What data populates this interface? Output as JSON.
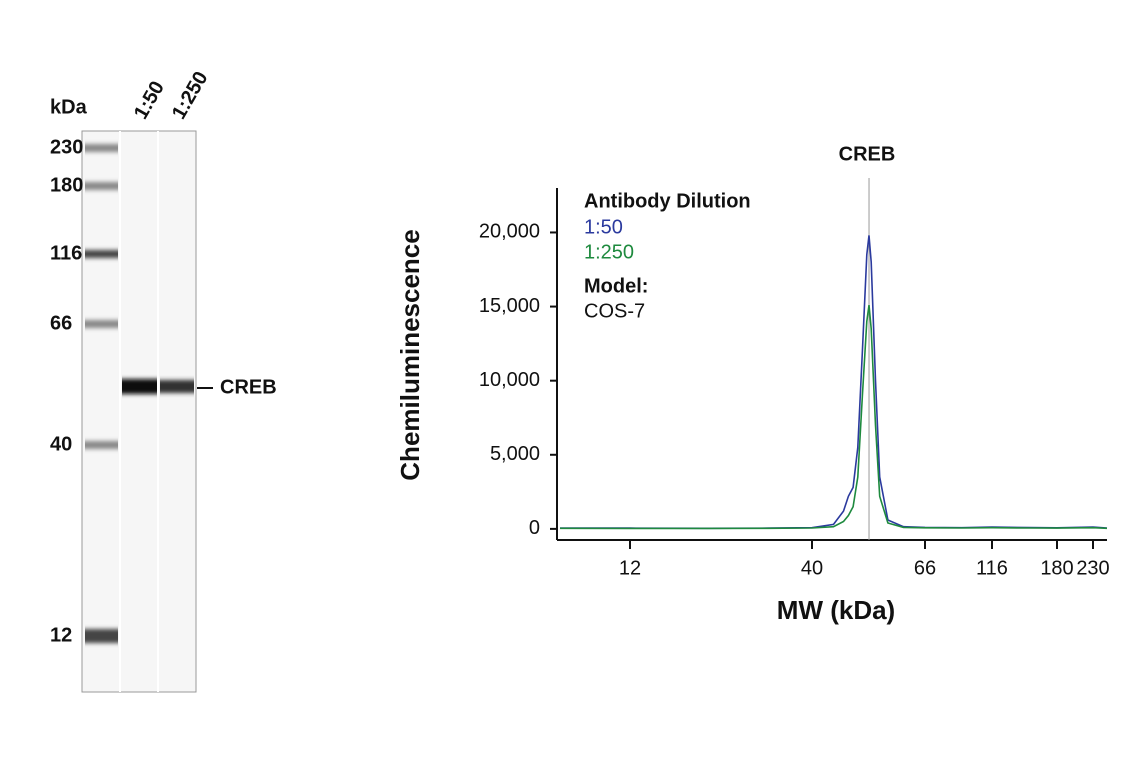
{
  "gel": {
    "unit": "kDa",
    "markers": [
      230,
      180,
      116,
      66,
      40,
      12
    ],
    "lanes": [
      "1:50",
      "1:250"
    ],
    "band": "CREB"
  },
  "chart_data": {
    "type": "line",
    "title": "CREB",
    "annotation_x": 51.5,
    "x_label": "MW (kDa)",
    "y_label": "Chemiluminescence",
    "legend_title": "Antibody Dilution",
    "model_label": "Model:",
    "model": "COS-7",
    "xlim": [
      7.5,
      253
    ],
    "xticks": [
      12,
      40,
      66,
      116,
      180,
      230
    ],
    "ylim": [
      -750,
      23000
    ],
    "yticks": [
      0,
      {
        "value": 5000,
        "label": "5,000"
      },
      {
        "value": 10000,
        "label": "10,000"
      },
      {
        "value": 15000,
        "label": "15,000"
      },
      {
        "value": 20000,
        "label": "20,000"
      }
    ],
    "x": [
      7.5,
      12,
      20,
      30,
      40,
      44,
      46,
      47,
      48,
      49,
      50,
      51,
      51.5,
      52,
      53,
      54,
      56,
      60,
      66,
      90,
      116,
      150,
      180,
      230,
      253
    ],
    "series": [
      {
        "name": "1:50",
        "color": "#2b3a9e",
        "values": [
          60,
          50,
          40,
          50,
          80,
          300,
          1200,
          2200,
          2800,
          5500,
          12000,
          18500,
          19800,
          18000,
          10000,
          3500,
          600,
          150,
          100,
          80,
          120,
          90,
          70,
          120,
          60
        ]
      },
      {
        "name": "1:250",
        "color": "#1e8a3e",
        "values": [
          40,
          30,
          30,
          40,
          60,
          150,
          500,
          900,
          1500,
          3500,
          9000,
          14000,
          15100,
          13500,
          7000,
          2200,
          400,
          100,
          70,
          60,
          80,
          60,
          50,
          80,
          40
        ]
      }
    ]
  }
}
